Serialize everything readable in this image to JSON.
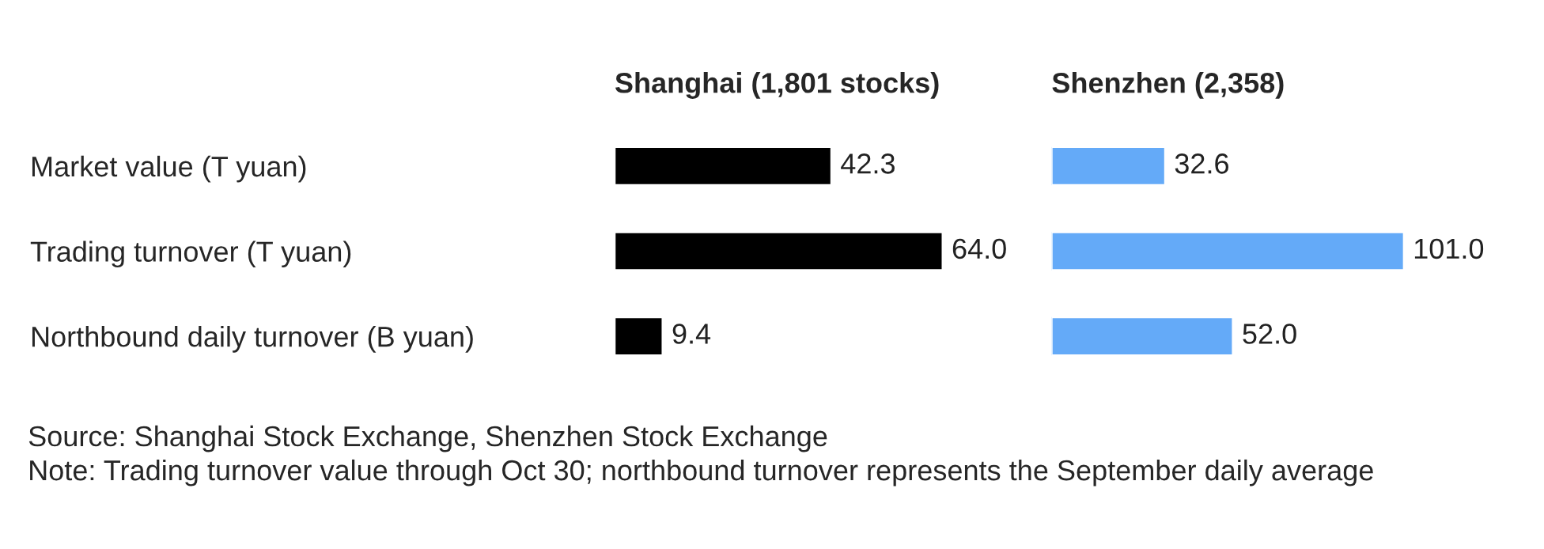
{
  "chart_data": [
    {
      "type": "bar",
      "orientation": "horizontal",
      "title": "Shanghai (1,801 stocks)",
      "categories": [
        "Market value (T yuan)",
        "Trading turnover (T yuan)",
        "Northbound daily turnover (B yuan)"
      ],
      "series": [
        {
          "color": "#000000",
          "values": [
            42.3,
            64.0,
            9.4
          ],
          "value_labels": [
            "42.3",
            "64.0",
            "9.4"
          ]
        }
      ],
      "grid": false,
      "legend": false,
      "annotations": [
        "Source: Shanghai Stock Exchange, Shenzhen Stock Exchange",
        "Note: Trading turnover value through Oct 30; northbound turnover represents the September daily average"
      ]
    },
    {
      "type": "bar",
      "orientation": "horizontal",
      "title": "Shenzhen (2,358)",
      "categories": [
        null,
        null,
        null
      ],
      "series": [
        {
          "color": "#64aaf8",
          "values": [
            32.6,
            101.0,
            52.0
          ],
          "value_labels": [
            "32.6",
            "101.0",
            "52.0"
          ]
        }
      ],
      "grid": false,
      "legend": false
    }
  ]
}
